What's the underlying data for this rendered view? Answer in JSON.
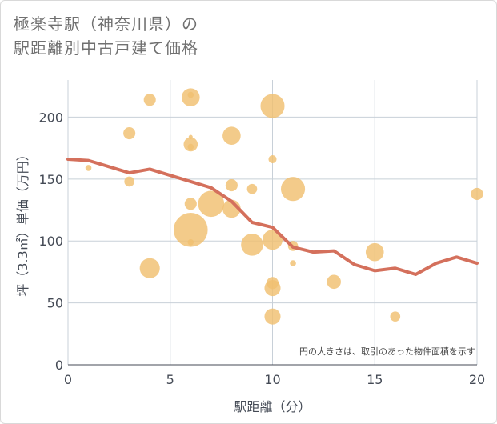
{
  "title_line1": "極楽寺駅（神奈川県）の",
  "title_line2": "駅距離別中古戸建て価格",
  "colors": {
    "bubble": "#f0c070",
    "line": "#d4705c",
    "grid": "#c8d0d8",
    "plot_bg": "#ffffff"
  },
  "chart_data": {
    "type": "scatter",
    "xlabel": "駅距離（分）",
    "ylabel": "坪（3.3㎡）単価（万円）",
    "xlim": [
      0,
      20
    ],
    "ylim": [
      0,
      230
    ],
    "x_ticks": [
      0,
      5,
      10,
      15,
      20
    ],
    "y_ticks": [
      0,
      50,
      100,
      150,
      200
    ],
    "x_tick_labels": [
      "0",
      "5",
      "10",
      "15",
      "20"
    ],
    "y_tick_labels": [
      "0",
      "50",
      "100",
      "150",
      "200"
    ],
    "grid": true,
    "note": "円の大きさは、取引のあった物件面積を示す",
    "bubbles": [
      {
        "x": 1,
        "y": 159,
        "size": 2
      },
      {
        "x": 3,
        "y": 187,
        "size": 5
      },
      {
        "x": 3,
        "y": 148,
        "size": 4
      },
      {
        "x": 4,
        "y": 214,
        "size": 5
      },
      {
        "x": 4,
        "y": 78,
        "size": 9
      },
      {
        "x": 6,
        "y": 216,
        "size": 8
      },
      {
        "x": 6,
        "y": 218,
        "size": 2
      },
      {
        "x": 6,
        "y": 184,
        "size": 1
      },
      {
        "x": 6,
        "y": 178,
        "size": 6
      },
      {
        "x": 6,
        "y": 176,
        "size": 2
      },
      {
        "x": 6,
        "y": 130,
        "size": 5
      },
      {
        "x": 6,
        "y": 109,
        "size": 16
      },
      {
        "x": 6,
        "y": 99,
        "size": 2
      },
      {
        "x": 7,
        "y": 130,
        "size": 12
      },
      {
        "x": 8,
        "y": 185,
        "size": 8
      },
      {
        "x": 8,
        "y": 145,
        "size": 5
      },
      {
        "x": 8,
        "y": 126,
        "size": 8
      },
      {
        "x": 9,
        "y": 142,
        "size": 4
      },
      {
        "x": 9,
        "y": 97,
        "size": 10
      },
      {
        "x": 10,
        "y": 209,
        "size": 11
      },
      {
        "x": 10,
        "y": 166,
        "size": 3
      },
      {
        "x": 10,
        "y": 101,
        "size": 9
      },
      {
        "x": 10,
        "y": 66,
        "size": 5
      },
      {
        "x": 10,
        "y": 62,
        "size": 7
      },
      {
        "x": 10,
        "y": 39,
        "size": 7
      },
      {
        "x": 11,
        "y": 142,
        "size": 11
      },
      {
        "x": 11,
        "y": 96,
        "size": 4
      },
      {
        "x": 11,
        "y": 82,
        "size": 2
      },
      {
        "x": 13,
        "y": 67,
        "size": 6
      },
      {
        "x": 15,
        "y": 91,
        "size": 8
      },
      {
        "x": 16,
        "y": 39,
        "size": 4
      },
      {
        "x": 20,
        "y": 138,
        "size": 5
      }
    ],
    "series": [
      {
        "type": "line",
        "x": [
          0,
          1,
          2,
          3,
          4,
          5,
          6,
          7,
          8,
          9,
          10,
          11,
          12,
          13,
          14,
          15,
          16,
          17,
          18,
          19,
          20
        ],
        "values": [
          166,
          165,
          160,
          155,
          158,
          153,
          148,
          143,
          132,
          115,
          111,
          95,
          91,
          92,
          81,
          76,
          78,
          73,
          82,
          87,
          82
        ]
      }
    ]
  }
}
